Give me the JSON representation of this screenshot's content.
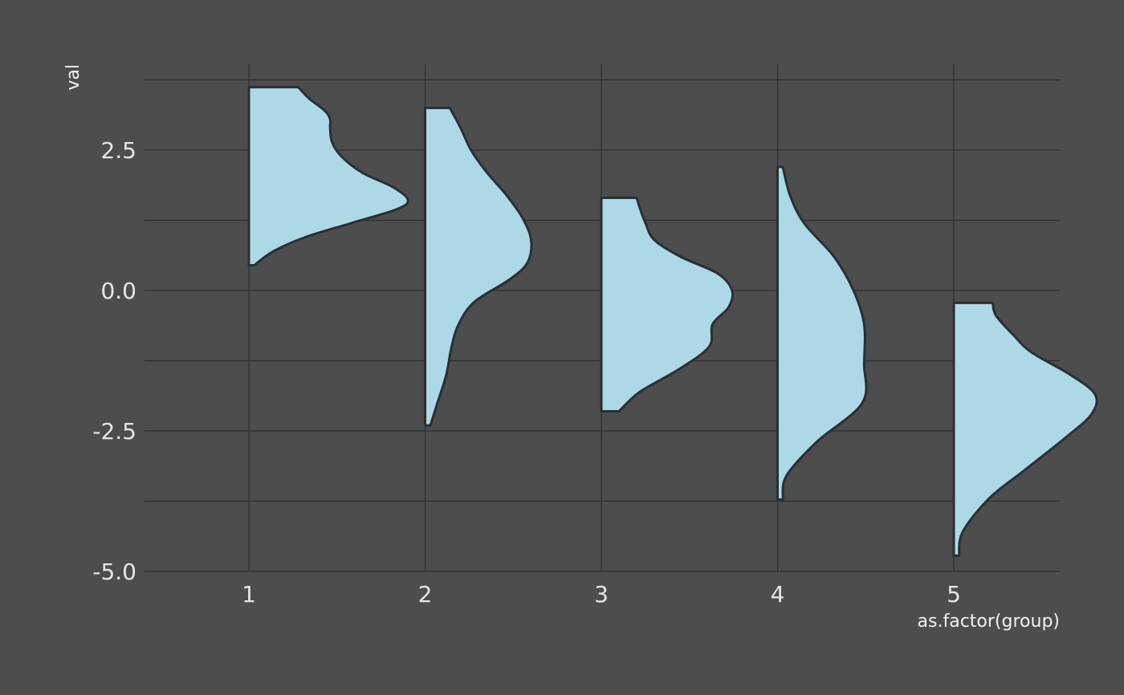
{
  "chart_data": {
    "type": "violin",
    "xlabel": "as.factor(group)",
    "ylabel": "val",
    "categories": [
      "1",
      "2",
      "3",
      "4",
      "5"
    ],
    "ylim": [
      -5.0,
      4.0
    ],
    "y_ticks": [
      -5.0,
      -2.5,
      0.0,
      2.5
    ],
    "y_tick_labels": [
      "-5.0",
      "-2.5",
      "0.0",
      "2.5"
    ],
    "grid": true,
    "legend": "none",
    "fill_color": "#add8e6",
    "outline_color": "#2a2f33",
    "background_color": "#4d4d4d",
    "series": [
      {
        "category": "1",
        "profile": [
          [
            0.45,
            0.03
          ],
          [
            0.7,
            0.14
          ],
          [
            0.95,
            0.32
          ],
          [
            1.2,
            0.58
          ],
          [
            1.45,
            0.84
          ],
          [
            1.62,
            0.9
          ],
          [
            1.85,
            0.81
          ],
          [
            2.1,
            0.64
          ],
          [
            2.4,
            0.52
          ],
          [
            2.65,
            0.47
          ],
          [
            2.9,
            0.46
          ],
          [
            3.05,
            0.46
          ],
          [
            3.2,
            0.43
          ],
          [
            3.42,
            0.34
          ],
          [
            3.62,
            0.28
          ]
        ]
      },
      {
        "category": "2",
        "profile": [
          [
            -2.4,
            0.03
          ],
          [
            -2.0,
            0.07
          ],
          [
            -1.5,
            0.12
          ],
          [
            -1.0,
            0.15
          ],
          [
            -0.6,
            0.19
          ],
          [
            -0.2,
            0.28
          ],
          [
            0.2,
            0.48
          ],
          [
            0.5,
            0.58
          ],
          [
            0.9,
            0.6
          ],
          [
            1.3,
            0.55
          ],
          [
            1.7,
            0.46
          ],
          [
            2.1,
            0.35
          ],
          [
            2.5,
            0.26
          ],
          [
            2.9,
            0.2
          ],
          [
            3.25,
            0.14
          ]
        ]
      },
      {
        "category": "3",
        "profile": [
          [
            -2.15,
            0.1
          ],
          [
            -1.8,
            0.22
          ],
          [
            -1.4,
            0.44
          ],
          [
            -1.0,
            0.61
          ],
          [
            -0.6,
            0.63
          ],
          [
            -0.3,
            0.72
          ],
          [
            0.0,
            0.74
          ],
          [
            0.3,
            0.66
          ],
          [
            0.6,
            0.45
          ],
          [
            0.9,
            0.3
          ],
          [
            1.2,
            0.25
          ],
          [
            1.45,
            0.22
          ],
          [
            1.65,
            0.2
          ]
        ]
      },
      {
        "category": "4",
        "profile": [
          [
            -3.72,
            0.03
          ],
          [
            -3.3,
            0.05
          ],
          [
            -2.7,
            0.22
          ],
          [
            -2.0,
            0.48
          ],
          [
            -1.3,
            0.49
          ],
          [
            -0.6,
            0.49
          ],
          [
            0.0,
            0.43
          ],
          [
            0.6,
            0.32
          ],
          [
            1.2,
            0.15
          ],
          [
            1.7,
            0.07
          ],
          [
            2.2,
            0.03
          ]
        ]
      },
      {
        "category": "5",
        "profile": [
          [
            -4.72,
            0.03
          ],
          [
            -4.3,
            0.05
          ],
          [
            -3.7,
            0.2
          ],
          [
            -3.2,
            0.4
          ],
          [
            -2.6,
            0.64
          ],
          [
            -2.2,
            0.78
          ],
          [
            -1.85,
            0.8
          ],
          [
            -1.5,
            0.66
          ],
          [
            -1.1,
            0.44
          ],
          [
            -0.8,
            0.34
          ],
          [
            -0.45,
            0.24
          ],
          [
            -0.22,
            0.22
          ]
        ]
      }
    ]
  }
}
